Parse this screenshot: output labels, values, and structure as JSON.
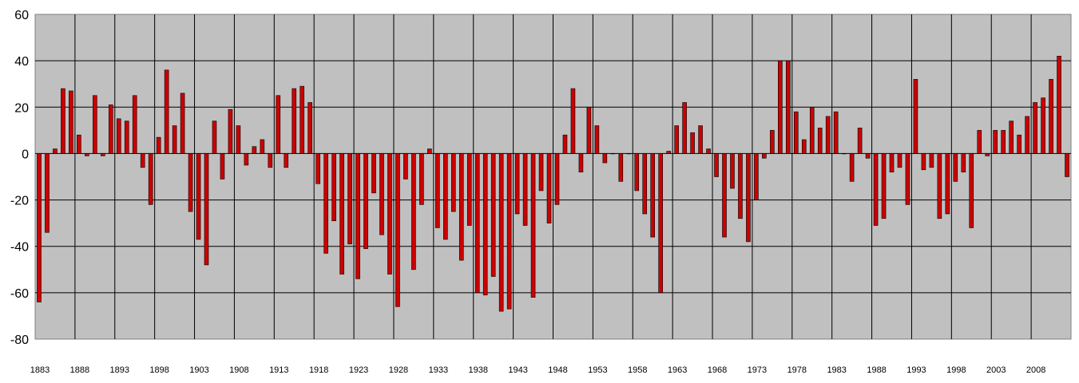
{
  "chart_data": {
    "type": "bar",
    "title": "",
    "xlabel": "",
    "ylabel": "",
    "ylim": [
      -80,
      60
    ],
    "yticks": [
      60,
      40,
      20,
      0,
      -20,
      -40,
      -60,
      -80
    ],
    "grid": true,
    "legend": "none",
    "x_start": 1883,
    "x_label_every": 5,
    "x": [
      1883,
      1884,
      1885,
      1886,
      1887,
      1888,
      1889,
      1890,
      1891,
      1892,
      1893,
      1894,
      1895,
      1896,
      1897,
      1898,
      1899,
      1900,
      1901,
      1902,
      1903,
      1904,
      1905,
      1906,
      1907,
      1908,
      1909,
      1910,
      1911,
      1912,
      1913,
      1914,
      1915,
      1916,
      1917,
      1918,
      1919,
      1920,
      1921,
      1922,
      1923,
      1924,
      1925,
      1926,
      1927,
      1928,
      1929,
      1930,
      1931,
      1932,
      1933,
      1934,
      1935,
      1936,
      1937,
      1938,
      1939,
      1940,
      1941,
      1942,
      1943,
      1944,
      1945,
      1946,
      1947,
      1948,
      1949,
      1950,
      1951,
      1952,
      1953,
      1954,
      1955,
      1956,
      1957,
      1958,
      1959,
      1960,
      1961,
      1962,
      1963,
      1964,
      1965,
      1966,
      1967,
      1968,
      1969,
      1970,
      1971,
      1972,
      1973,
      1974,
      1975,
      1976,
      1977,
      1978,
      1979,
      1980,
      1981,
      1982,
      1983,
      1984,
      1985,
      1986,
      1987,
      1988,
      1989,
      1990,
      1991,
      1992,
      1993,
      1994,
      1995,
      1996,
      1997,
      1998,
      1999,
      2000,
      2001,
      2002,
      2003,
      2004,
      2005,
      2006,
      2007,
      2008,
      2009,
      2010,
      2011,
      2012
    ],
    "values": [
      -64,
      -34,
      2,
      28,
      27,
      8,
      -1,
      25,
      -1,
      21,
      15,
      14,
      25,
      -6,
      -22,
      7,
      36,
      12,
      26,
      -25,
      -37,
      -48,
      14,
      -11,
      19,
      12,
      -5,
      3,
      6,
      -6,
      25,
      -6,
      28,
      29,
      22,
      -13,
      -43,
      -29,
      -52,
      -39,
      -54,
      -41,
      -17,
      -35,
      -52,
      -66,
      -11,
      -50,
      -22,
      2,
      -32,
      -37,
      -25,
      -46,
      -31,
      -60,
      -61,
      -53,
      -68,
      -67,
      -26,
      -31,
      -62,
      -16,
      -30,
      -22,
      8,
      28,
      -8,
      20,
      12,
      -4,
      0,
      -12,
      0,
      -16,
      -26,
      -36,
      -60,
      1,
      12,
      22,
      9,
      12,
      2,
      -10,
      -36,
      -15,
      -28,
      -38,
      -20,
      -2,
      10,
      40,
      40,
      18,
      6,
      20,
      11,
      16,
      18,
      0,
      -12,
      11,
      -2,
      -31,
      -28,
      -8,
      -6,
      -22,
      32,
      -7,
      -6,
      -28,
      -26,
      -12,
      -8,
      -32,
      10,
      -1,
      10,
      10,
      14,
      8,
      16,
      22,
      24,
      32,
      42,
      -10
    ],
    "colors": {
      "bar_fill": "#cc0000",
      "bar_stroke": "#000000",
      "plot_bg": "#c0c0c0",
      "grid": "#000000",
      "page_bg": "#ffffff"
    }
  }
}
